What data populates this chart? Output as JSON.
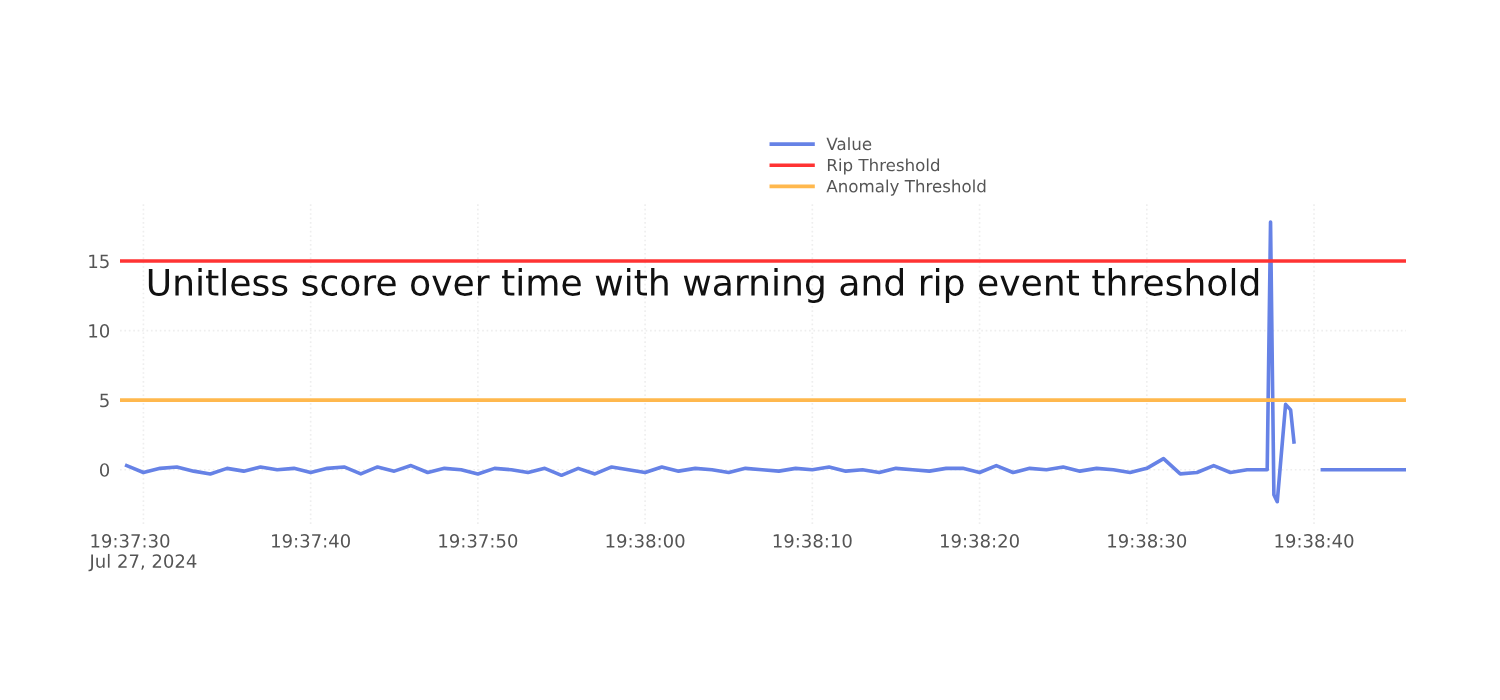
{
  "chart_data": {
    "type": "line",
    "annotations": [
      "Unitless score over time with warning and rip event threshold"
    ],
    "x": [
      "2024-07-27T19:37:29",
      "2024-07-27T19:37:30",
      "2024-07-27T19:37:31",
      "2024-07-27T19:37:32",
      "2024-07-27T19:37:33",
      "2024-07-27T19:37:34",
      "2024-07-27T19:37:35",
      "2024-07-27T19:37:36",
      "2024-07-27T19:37:37",
      "2024-07-27T19:37:38",
      "2024-07-27T19:37:39",
      "2024-07-27T19:37:40",
      "2024-07-27T19:37:41",
      "2024-07-27T19:37:42",
      "2024-07-27T19:37:43",
      "2024-07-27T19:37:44",
      "2024-07-27T19:37:45",
      "2024-07-27T19:37:46",
      "2024-07-27T19:37:47",
      "2024-07-27T19:37:48",
      "2024-07-27T19:37:49",
      "2024-07-27T19:37:50",
      "2024-07-27T19:37:51",
      "2024-07-27T19:37:52",
      "2024-07-27T19:37:53",
      "2024-07-27T19:37:54",
      "2024-07-27T19:37:55",
      "2024-07-27T19:37:56",
      "2024-07-27T19:37:57",
      "2024-07-27T19:37:58",
      "2024-07-27T19:37:59",
      "2024-07-27T19:38:00",
      "2024-07-27T19:38:01",
      "2024-07-27T19:38:02",
      "2024-07-27T19:38:03",
      "2024-07-27T19:38:04",
      "2024-07-27T19:38:05",
      "2024-07-27T19:38:06",
      "2024-07-27T19:38:07",
      "2024-07-27T19:38:08",
      "2024-07-27T19:38:09",
      "2024-07-27T19:38:10",
      "2024-07-27T19:38:11",
      "2024-07-27T19:38:12",
      "2024-07-27T19:38:13",
      "2024-07-27T19:38:14",
      "2024-07-27T19:38:15",
      "2024-07-27T19:38:16",
      "2024-07-27T19:38:17",
      "2024-07-27T19:38:18",
      "2024-07-27T19:38:19",
      "2024-07-27T19:38:20",
      "2024-07-27T19:38:21",
      "2024-07-27T19:38:22",
      "2024-07-27T19:38:23",
      "2024-07-27T19:38:24",
      "2024-07-27T19:38:25",
      "2024-07-27T19:38:26",
      "2024-07-27T19:38:27",
      "2024-07-27T19:38:28",
      "2024-07-27T19:38:29",
      "2024-07-27T19:38:30",
      "2024-07-27T19:38:31",
      "2024-07-27T19:38:32",
      "2024-07-27T19:38:33",
      "2024-07-27T19:38:34",
      "2024-07-27T19:38:35",
      "2024-07-27T19:38:36",
      "2024-07-27T19:38:37.2",
      "2024-07-27T19:38:37.4",
      "2024-07-27T19:38:37.6",
      "2024-07-27T19:38:37.8",
      "2024-07-27T19:38:38.3",
      "2024-07-27T19:38:38.6",
      "2024-07-27T19:38:38.8",
      "2024-07-27T19:38:39",
      "2024-07-27T19:38:39.7",
      "2024-07-27T19:38:40.4",
      "2024-07-27T19:38:40.5",
      "2024-07-27T19:38:45.5"
    ],
    "series": [
      {
        "name": "Value",
        "color": "#6682e6",
        "values": [
          0.3,
          -0.2,
          0.1,
          0.2,
          -0.1,
          -0.3,
          0.1,
          -0.1,
          0.2,
          0.0,
          0.1,
          -0.2,
          0.1,
          0.2,
          -0.3,
          0.2,
          -0.1,
          0.3,
          -0.2,
          0.1,
          0.0,
          -0.3,
          0.1,
          0.0,
          -0.2,
          0.1,
          -0.4,
          0.1,
          -0.3,
          0.2,
          0.0,
          -0.2,
          0.2,
          -0.1,
          0.1,
          0.0,
          -0.2,
          0.1,
          0.0,
          -0.1,
          0.1,
          0.0,
          0.2,
          -0.1,
          0.0,
          -0.2,
          0.1,
          0.0,
          -0.1,
          0.1,
          0.1,
          -0.2,
          0.3,
          -0.2,
          0.1,
          0.0,
          0.2,
          -0.1,
          0.1,
          0.0,
          -0.2,
          0.1,
          0.8,
          -0.3,
          -0.2,
          0.3,
          -0.2,
          0.0,
          0.0,
          17.8,
          -1.8,
          -2.3,
          4.7,
          4.3,
          2.0,
          null,
          null,
          null,
          0.0,
          0.0
        ]
      }
    ],
    "ref_lines": [
      {
        "axis": "y",
        "value": 15,
        "label": "Rip Threshold",
        "color": "#ff3333"
      },
      {
        "axis": "y",
        "value": 5,
        "label": "Anomaly Threshold",
        "color": "#ffb84d"
      }
    ],
    "xlim": [
      "2024-07-27T19:37:28.6",
      "2024-07-27T19:38:45.5"
    ],
    "xticks": [
      {
        "value": "2024-07-27T19:37:30",
        "label": "19:37:30\nJul 27, 2024"
      },
      {
        "value": "2024-07-27T19:37:40",
        "label": "19:37:40"
      },
      {
        "value": "2024-07-27T19:37:50",
        "label": "19:37:50"
      },
      {
        "value": "2024-07-27T19:38:00",
        "label": "19:38:00"
      },
      {
        "value": "2024-07-27T19:38:10",
        "label": "19:38:10"
      },
      {
        "value": "2024-07-27T19:38:20",
        "label": "19:38:20"
      },
      {
        "value": "2024-07-27T19:38:30",
        "label": "19:38:30"
      },
      {
        "value": "2024-07-27T19:38:40",
        "label": "19:38:40"
      }
    ],
    "ylim": [
      -3.9,
      19.1
    ],
    "yticks": [
      0,
      5,
      10,
      15
    ],
    "grid": true,
    "legend": "top"
  }
}
